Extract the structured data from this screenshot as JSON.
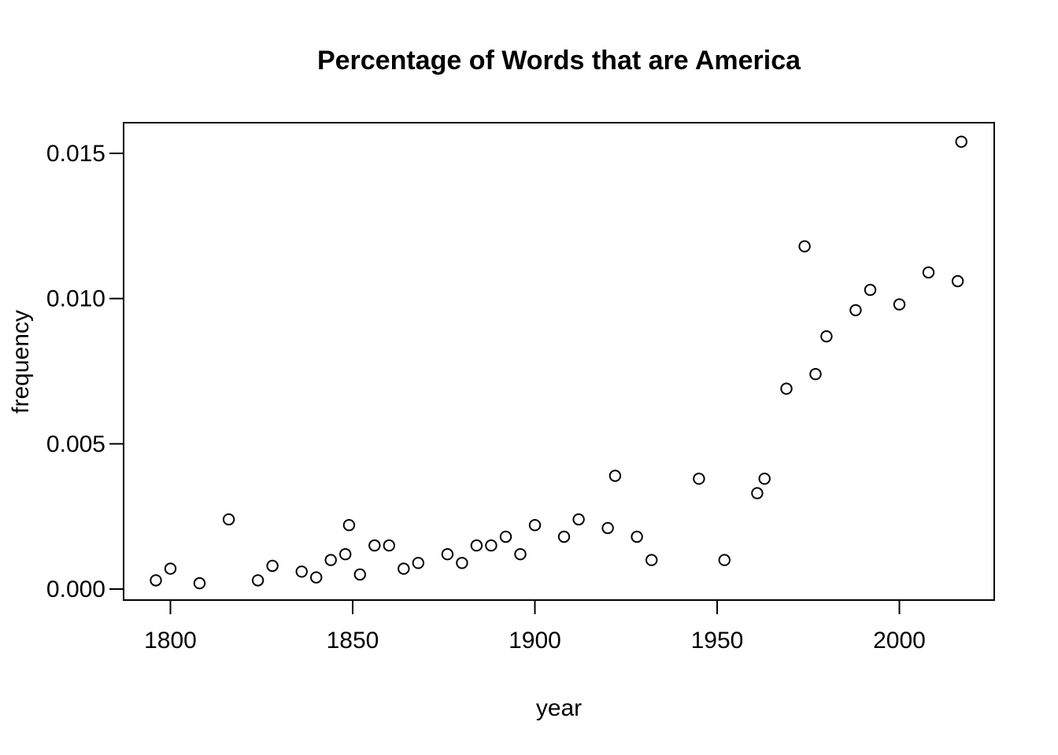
{
  "chart_data": {
    "type": "scatter",
    "title": "Percentage of Words that are America",
    "xlabel": "year",
    "ylabel": "frequency",
    "marker": "open-circle",
    "grid": false,
    "legend": "none",
    "colors": {
      "background": "#ffffff",
      "foreground": "#000000"
    },
    "x_ticks": [
      1800,
      1850,
      1900,
      1950,
      2000
    ],
    "y_ticks": [
      {
        "value": 0.0,
        "label": "0.000"
      },
      {
        "value": 0.005,
        "label": "0.005"
      },
      {
        "value": 0.01,
        "label": "0.010"
      },
      {
        "value": 0.015,
        "label": "0.015"
      }
    ],
    "xlim": [
      1787,
      2026
    ],
    "ylim": [
      -0.0004,
      0.0161
    ],
    "points": [
      [
        1796,
        0.0003
      ],
      [
        1800,
        0.0007
      ],
      [
        1808,
        0.0002
      ],
      [
        1816,
        0.0024
      ],
      [
        1824,
        0.0003
      ],
      [
        1828,
        0.0008
      ],
      [
        1836,
        0.0006
      ],
      [
        1840,
        0.0004
      ],
      [
        1844,
        0.001
      ],
      [
        1848,
        0.0012
      ],
      [
        1849,
        0.0022
      ],
      [
        1852,
        0.0005
      ],
      [
        1856,
        0.0015
      ],
      [
        1860,
        0.0015
      ],
      [
        1864,
        0.0007
      ],
      [
        1868,
        0.0009
      ],
      [
        1876,
        0.0012
      ],
      [
        1880,
        0.0009
      ],
      [
        1884,
        0.0015
      ],
      [
        1888,
        0.0015
      ],
      [
        1892,
        0.0018
      ],
      [
        1896,
        0.0012
      ],
      [
        1900,
        0.0022
      ],
      [
        1908,
        0.0018
      ],
      [
        1912,
        0.0024
      ],
      [
        1920,
        0.0021
      ],
      [
        1922,
        0.0039
      ],
      [
        1928,
        0.0018
      ],
      [
        1932,
        0.001
      ],
      [
        1945,
        0.0038
      ],
      [
        1952,
        0.001
      ],
      [
        1961,
        0.0033
      ],
      [
        1963,
        0.0038
      ],
      [
        1969,
        0.0069
      ],
      [
        1974,
        0.0118
      ],
      [
        1977,
        0.0074
      ],
      [
        1980,
        0.0087
      ],
      [
        1988,
        0.0096
      ],
      [
        1992,
        0.0103
      ],
      [
        2000,
        0.0098
      ],
      [
        2008,
        0.0109
      ],
      [
        2016,
        0.0106
      ],
      [
        2017,
        0.0154
      ]
    ]
  }
}
